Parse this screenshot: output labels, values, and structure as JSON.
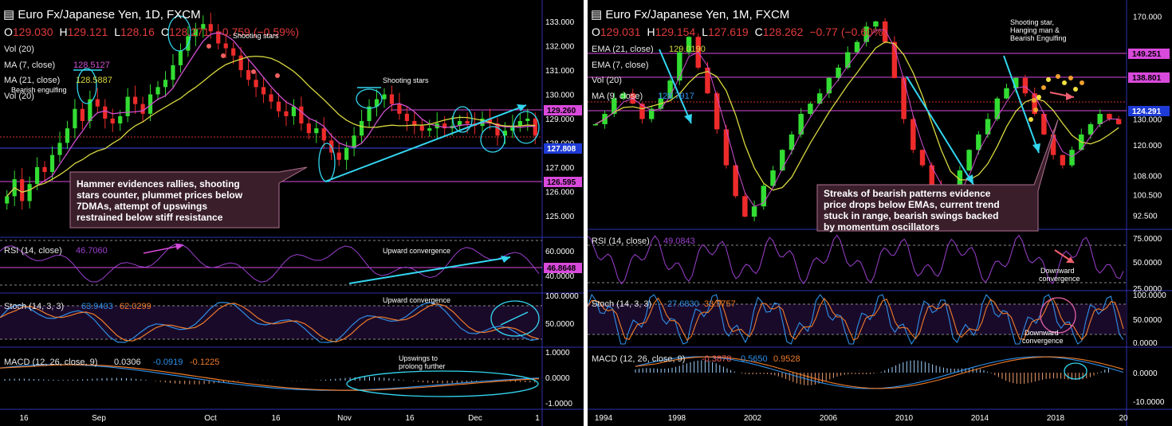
{
  "colors": {
    "bg": "#000000",
    "up": "#33dd33",
    "down": "#ee2b2b",
    "ma_fast": "#d050d0",
    "ma_slow": "#d8d840",
    "rsi": "#9c3fcf",
    "stoch_k": "#2f8fe8",
    "stoch_d": "#f07c2a",
    "macd": "#2f8fe8",
    "signal": "#f07c2a",
    "annot": "#33d6f0",
    "magenta": "#d84adb"
  },
  "daily": {
    "title": "Euro Fx/Japanese Yen, 1D, FXCM",
    "ohlc": {
      "o": "129.030",
      "h": "129.121",
      "l": "128.16",
      "c": "128.271",
      "chg": "(−0.59%)",
      "chg_pts": "−0.759"
    },
    "indicators": {
      "vol": "Vol (20)",
      "ma7": "MA (7, close)",
      "ma7_val": "128.5127",
      "ma21": "MA (21, close)",
      "ma21_val": "128.5887",
      "vol2": "Vol (20)"
    },
    "annotations": {
      "bearish": "Bearish engulfing",
      "shoot1": "Shooting stars",
      "shoot2": "Shooting stars",
      "upconv1": "Upward convergence",
      "upconv2": "Upward convergence",
      "ups1": "Upswings to",
      "ups2": "prolong further"
    },
    "note": [
      "Hammer evidences rallies, shooting",
      "stars counter, plummet prices below",
      "7DMAs, attempt of upswings",
      "restrained below stiff resistance"
    ],
    "rsi": {
      "label": "RSI (14, close)",
      "val": "46.7060",
      "tag": "46.8648"
    },
    "stoch": {
      "label": "Stoch (14, 3, 3)",
      "k": "63.9403",
      "d": "62.0299"
    },
    "macd": {
      "label": "MACD (12, 26, close, 9)",
      "a": "0.0306",
      "b": "-0.0919",
      "c": "-0.1225"
    },
    "tags": {
      "t1": "129.260",
      "t2": "127.808",
      "t3": "126.595"
    }
  },
  "monthly": {
    "title": "Euro Fx/Japanese Yen, 1M, FXCM",
    "ohlc": {
      "o": "129.031",
      "h": "129.154",
      "l": "127.619",
      "c": "128.262",
      "chg": "(−0.60%)",
      "chg_pts": "−0.77"
    },
    "indicators": {
      "ema21": "EMA (21, close)",
      "ema21_val": "129.0190",
      "ema7": "EMA (7, close)",
      "vol": "Vol (20)",
      "ma9": "MA (9, close)",
      "ma9_val": "128.7917"
    },
    "annotations": {
      "top1": "Shooting star,",
      "top2": "Hanging man &",
      "top3": "Bearish Engulfing",
      "down1": "Downward",
      "down2": "convergence",
      "down3": "Downward",
      "down4": "convergence"
    },
    "note": [
      "Streaks of bearish patterns evidence",
      "price drops below EMAs, current trend",
      "stuck in range, bearish swings backed",
      "by momentum oscillators"
    ],
    "rsi": {
      "label": "RSI (14, close)",
      "val": "49.0843"
    },
    "stoch": {
      "label": "Stoch (14, 3, 3)",
      "k": "27.6830",
      "d": "33.9757"
    },
    "macd": {
      "label": "MACD (12, 26, close, 9)",
      "a": "-0.3878",
      "b": "0.5650",
      "c": "0.9528"
    },
    "tags": {
      "t1": "149.251",
      "t2": "138.801",
      "t3": "124.291"
    }
  },
  "chart_data": [
    {
      "type": "candlestick",
      "title": "Euro Fx/Japanese Yen, 1D, FXCM",
      "x_ticks": [
        "16",
        "Sep",
        "Oct",
        "16",
        "Nov",
        "16",
        "Dec",
        "1"
      ],
      "y_ticks": [
        125,
        126,
        127,
        128,
        129,
        130,
        131,
        132,
        133
      ],
      "ylim": [
        124.5,
        133.3
      ],
      "close": [
        125.8,
        126.5,
        125.6,
        126.3,
        127.0,
        126.8,
        127.5,
        128.0,
        128.6,
        129.4,
        128.9,
        129.8,
        129.5,
        129.0,
        128.8,
        129.1,
        129.9,
        129.6,
        129.2,
        130.0,
        130.3,
        130.6,
        131.2,
        131.8,
        132.4,
        132.7,
        132.9,
        132.6,
        132.1,
        131.9,
        131.6,
        131.0,
        130.6,
        130.3,
        130.0,
        129.7,
        129.3,
        129.1,
        129.5,
        128.8,
        128.4,
        128.6,
        128.1,
        127.6,
        127.3,
        127.8,
        128.3,
        128.9,
        129.5,
        129.8,
        130.0,
        129.6,
        129.2,
        128.9,
        128.7,
        128.5,
        128.6,
        128.8,
        128.6,
        128.7,
        128.9,
        128.8,
        128.7,
        129.0,
        128.8,
        128.3,
        128.5,
        128.7,
        128.9,
        129.0,
        128.3
      ],
      "ma7": {
        "name": "MA (7, close)",
        "value": 128.5127
      },
      "ma21": {
        "name": "MA (21, close)",
        "value": 128.5887
      },
      "levels": [
        129.26,
        127.808,
        126.595
      ],
      "rsi": {
        "ylim": [
          30,
          70
        ],
        "levels": [
          40,
          60
        ],
        "last": 46.706
      },
      "stoch": {
        "ylim": [
          0,
          100
        ],
        "levels": [
          20,
          80
        ],
        "k": 63.9403,
        "d": 62.0299
      },
      "macd": {
        "ylim": [
          -1.0,
          1.0
        ],
        "values": [
          0.0306,
          -0.0919,
          -0.1225
        ]
      }
    },
    {
      "type": "candlestick",
      "title": "Euro Fx/Japanese Yen, 1M, FXCM",
      "x_ticks": [
        "1994",
        "1998",
        "2002",
        "2006",
        "2010",
        "2014",
        "2018",
        "20"
      ],
      "y_ticks": [
        92.5,
        100.5,
        108.0,
        120.0,
        130.0,
        170.0
      ],
      "ylim": [
        88,
        172
      ],
      "close": [
        128,
        132,
        138,
        140,
        136,
        130,
        134,
        138,
        145,
        156,
        162,
        150,
        140,
        126,
        112,
        100,
        92,
        96,
        104,
        110,
        118,
        124,
        132,
        136,
        140,
        146,
        150,
        156,
        160,
        166,
        168,
        160,
        146,
        130,
        118,
        112,
        104,
        98,
        96,
        110,
        118,
        124,
        130,
        138,
        142,
        146,
        140,
        132,
        124,
        116,
        112,
        118,
        124,
        128,
        132,
        130,
        128
      ],
      "ema21": {
        "name": "EMA (21, close)",
        "value": 129.019
      },
      "ma9": {
        "name": "MA (9, close)",
        "value": 128.7917
      },
      "levels": [
        149.251,
        138.801,
        124.291
      ],
      "rsi": {
        "ylim": [
          20,
          80
        ],
        "levels": [
          30,
          70
        ],
        "last": 49.0843
      },
      "stoch": {
        "ylim": [
          0,
          100
        ],
        "levels": [
          20,
          80
        ],
        "k": 27.683,
        "d": 33.9757
      },
      "macd": {
        "ylim": [
          -10,
          8
        ],
        "values": [
          -0.3878,
          0.565,
          0.9528
        ]
      }
    }
  ]
}
